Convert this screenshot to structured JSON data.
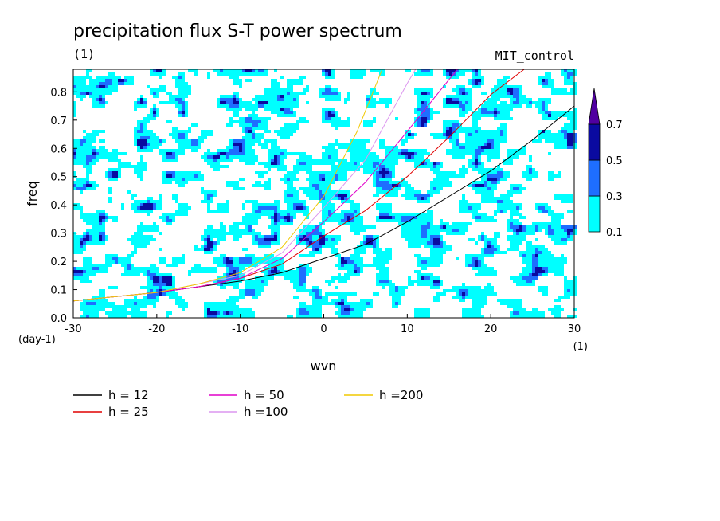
{
  "chart_data": {
    "type": "heatmap",
    "title": "precipitation flux S-T power spectrum",
    "subtitle_left": "(1)",
    "subtitle_right": "MIT_control",
    "xlabel": "wvn",
    "ylabel": "freq",
    "x_unit": "(1)",
    "y_unit": "(day-1)",
    "xlim": [
      -30,
      30
    ],
    "ylim": [
      0,
      0.88
    ],
    "xticks": [
      "-30",
      "-20",
      "-10",
      "0",
      "10",
      "20",
      "30"
    ],
    "yticks": [
      "0.0",
      "0.1",
      "0.2",
      "0.3",
      "0.4",
      "0.5",
      "0.6",
      "0.7",
      "0.8"
    ],
    "colorbar": {
      "levels": [
        "0.1",
        "0.3",
        "0.5",
        "0.7"
      ],
      "colors": [
        "#00ffff",
        "#1e6eff",
        "#0a0aa0",
        "#5000a0"
      ]
    },
    "series": [
      {
        "name": "h = 12",
        "color": "#000000",
        "x": [
          -30,
          -20,
          -15,
          -10,
          -5,
          0,
          5,
          10,
          15,
          20,
          25,
          30
        ],
        "y": [
          0.06,
          0.09,
          0.11,
          0.13,
          0.16,
          0.21,
          0.26,
          0.34,
          0.43,
          0.52,
          0.63,
          0.75
        ]
      },
      {
        "name": "h = 25",
        "color": "#e00000",
        "x": [
          -30,
          -20,
          -15,
          -10,
          -5,
          0,
          5,
          10,
          15,
          20,
          24
        ],
        "y": [
          0.06,
          0.09,
          0.11,
          0.14,
          0.19,
          0.29,
          0.38,
          0.5,
          0.64,
          0.79,
          0.88
        ]
      },
      {
        "name": "h = 50",
        "color": "#e000c8",
        "x": [
          -30,
          -20,
          -15,
          -10,
          -5,
          0,
          5,
          10,
          16
        ],
        "y": [
          0.06,
          0.09,
          0.11,
          0.14,
          0.21,
          0.34,
          0.48,
          0.66,
          0.88
        ]
      },
      {
        "name": "h =100",
        "color": "#dc96ef",
        "x": [
          -30,
          -20,
          -15,
          -10,
          -5,
          0,
          5,
          10,
          11
        ],
        "y": [
          0.06,
          0.09,
          0.12,
          0.15,
          0.23,
          0.39,
          0.56,
          0.83,
          0.88
        ]
      },
      {
        "name": "h =200",
        "color": "#f0c800",
        "x": [
          -30,
          -20,
          -15,
          -10,
          -5,
          0,
          4,
          7
        ],
        "y": [
          0.06,
          0.09,
          0.12,
          0.16,
          0.25,
          0.43,
          0.66,
          0.88
        ]
      }
    ]
  }
}
